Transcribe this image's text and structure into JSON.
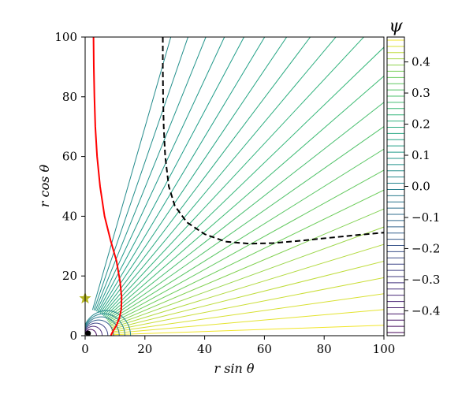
{
  "chart_data": {
    "type": "line",
    "subtype": "streamline-contour",
    "xlabel": "r sin θ",
    "ylabel": "r cos θ",
    "xlim": [
      0,
      100
    ],
    "ylim": [
      0,
      100
    ],
    "x_ticks": [
      "0",
      "20",
      "40",
      "60",
      "80",
      "100"
    ],
    "y_ticks": [
      "0",
      "20",
      "40",
      "60",
      "80",
      "100"
    ],
    "grid": false,
    "colorbar": {
      "title": "ψ",
      "range": [
        -0.48,
        0.48
      ],
      "ticks": [
        "0.4",
        "0.3",
        "0.2",
        "0.1",
        "0.0",
        "−0.1",
        "−0.2",
        "−0.3",
        "−0.4"
      ],
      "tick_values": [
        0.4,
        0.3,
        0.2,
        0.1,
        0.0,
        -0.1,
        -0.2,
        -0.3,
        -0.4
      ],
      "colormap": "viridis"
    },
    "contour_lines": {
      "angles_deg_from_vertical": [
        16,
        19,
        22,
        25,
        28,
        31,
        34,
        37,
        40,
        43,
        46,
        49,
        52,
        55,
        58,
        61,
        64,
        67,
        70,
        73,
        76,
        79,
        82,
        85,
        88
      ],
      "psi_values": [
        0.04,
        0.06,
        0.08,
        0.1,
        0.12,
        0.14,
        0.16,
        0.18,
        0.2,
        0.22,
        0.24,
        0.26,
        0.28,
        0.3,
        0.32,
        0.34,
        0.36,
        0.38,
        0.4,
        0.42,
        0.43,
        0.44,
        0.45,
        0.46,
        0.47
      ]
    },
    "loops": {
      "radii": [
        2,
        3,
        4,
        5,
        6,
        7,
        8
      ],
      "psi_values": [
        -0.45,
        -0.35,
        -0.25,
        -0.15,
        -0.05,
        0.0,
        0.02
      ]
    },
    "series": [
      {
        "color": "#ff0000",
        "style": "solid",
        "x": [
          2.8,
          2.9,
          3.1,
          3.4,
          4.0,
          5.0,
          6.5,
          8.5,
          10.5,
          11.7,
          12.2,
          12.1,
          11.5,
          10.5,
          9.5,
          8.9,
          8.6
        ],
        "y": [
          100,
          90,
          80,
          70,
          60,
          50,
          40,
          32,
          25,
          18,
          13,
          9,
          6,
          3.5,
          1.8,
          0.7,
          0
        ]
      },
      {
        "color": "#000000",
        "style": "dashed",
        "x": [
          26.0,
          26.0,
          26.1,
          26.3,
          26.8,
          28.0,
          30.0,
          34.0,
          40.0,
          47.0,
          55.0,
          63.0,
          72.0,
          82.0,
          92.0,
          100.0
        ],
        "y": [
          100,
          90,
          80,
          70,
          60,
          50,
          43.5,
          38,
          34,
          31.5,
          30.8,
          31.0,
          31.8,
          32.8,
          33.8,
          34.5
        ]
      }
    ],
    "markers": [
      {
        "shape": "star",
        "color": "#b5b520",
        "x": 0,
        "y": 12.5
      },
      {
        "shape": "circle",
        "color": "#000000",
        "x": 1.0,
        "y": 0.8
      }
    ]
  }
}
